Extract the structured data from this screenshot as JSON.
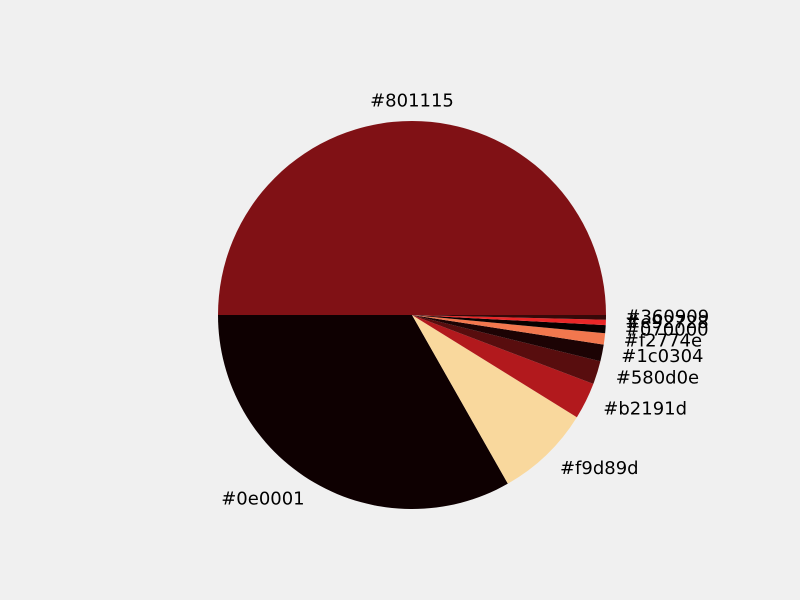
{
  "chart_data": {
    "type": "pie",
    "title": "",
    "start_angle_deg": 0,
    "direction": "counterclockwise",
    "slices": [
      {
        "label": "#801115",
        "value": 180.0,
        "color": "#801115"
      },
      {
        "label": "#0e0001",
        "value": 119.6,
        "color": "#0e0001"
      },
      {
        "label": "#f9d89d",
        "value": 28.6,
        "color": "#f9d89d"
      },
      {
        "label": "#b2191d",
        "value": 11.0,
        "color": "#b2191d"
      },
      {
        "label": "#580d0e",
        "value": 7.0,
        "color": "#580d0e"
      },
      {
        "label": "#1c0304",
        "value": 5.0,
        "color": "#1c0304"
      },
      {
        "label": "#f2774e",
        "value": 3.4,
        "color": "#f2774e"
      },
      {
        "label": "#070000",
        "value": 2.4,
        "color": "#070000"
      },
      {
        "label": "#e92728",
        "value": 1.6,
        "color": "#e92728"
      },
      {
        "label": "#360909",
        "value": 1.4,
        "color": "#360909"
      }
    ]
  }
}
